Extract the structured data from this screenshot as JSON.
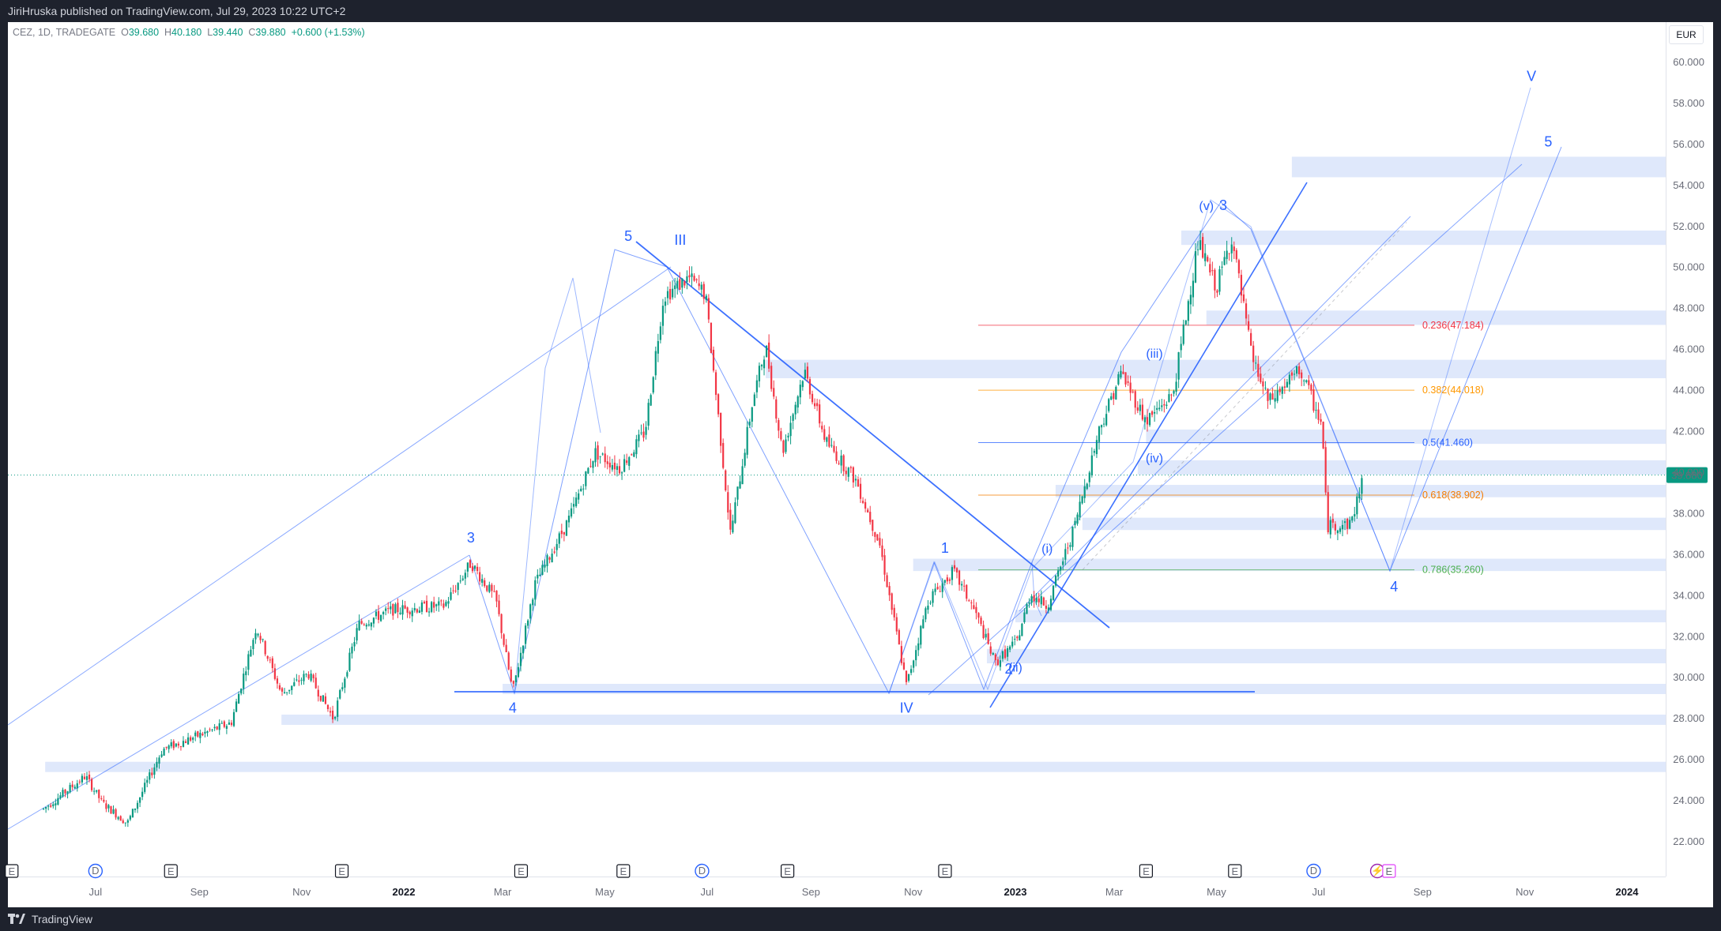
{
  "publisher_line": "JiriHruska published on TradingView.com, Jul 29, 2023 10:22 UTC+2",
  "footer_brand": "TradingView",
  "legend": {
    "symbol": "CEZ, 1D, TRADEGATE",
    "open_label": "O",
    "open": "39.680",
    "high_label": "H",
    "high": "40.180",
    "low_label": "L",
    "low": "39.440",
    "close_label": "C",
    "close": "39.880",
    "change": "+0.600 (+1.53%)"
  },
  "currency": "EUR",
  "last_price_label": "39.880",
  "colors": {
    "up": "#089981",
    "down": "#f23645",
    "wave": "#2962ff",
    "zone": "#dfe8fb",
    "topbar": "#1e222d"
  },
  "chart_data": {
    "type": "candlestick",
    "title": "",
    "xlabel": "",
    "ylabel": "",
    "ylim": [
      20.8,
      61.2
    ],
    "grid": false,
    "y_ticks": [
      "22.000",
      "24.000",
      "26.000",
      "28.000",
      "30.000",
      "32.000",
      "34.000",
      "36.000",
      "38.000",
      "40.000",
      "42.000",
      "44.000",
      "46.000",
      "48.000",
      "50.000",
      "52.000",
      "54.000",
      "56.000",
      "58.000",
      "60.000"
    ],
    "x_ticks": [
      {
        "label": "Jul",
        "bold": false
      },
      {
        "label": "Sep",
        "bold": false
      },
      {
        "label": "Nov",
        "bold": false
      },
      {
        "label": "2022",
        "bold": true
      },
      {
        "label": "Mar",
        "bold": false
      },
      {
        "label": "May",
        "bold": false
      },
      {
        "label": "Jul",
        "bold": false
      },
      {
        "label": "Sep",
        "bold": false
      },
      {
        "label": "Nov",
        "bold": false
      },
      {
        "label": "2023",
        "bold": true
      },
      {
        "label": "Mar",
        "bold": false
      },
      {
        "label": "May",
        "bold": false
      },
      {
        "label": "Jul",
        "bold": false
      },
      {
        "label": "Sep",
        "bold": false
      },
      {
        "label": "Nov",
        "bold": false
      },
      {
        "label": "2024",
        "bold": true
      }
    ],
    "price_path": [
      [
        "2021-05-31",
        23.6
      ],
      [
        "2021-06-25",
        25.2
      ],
      [
        "2021-07-05",
        23.9
      ],
      [
        "2021-07-20",
        22.9
      ],
      [
        "2021-08-10",
        26.5
      ],
      [
        "2021-09-20",
        27.8
      ],
      [
        "2021-10-05",
        32.5
      ],
      [
        "2021-10-20",
        29.2
      ],
      [
        "2021-11-05",
        30.2
      ],
      [
        "2021-11-20",
        28.0
      ],
      [
        "2021-12-05",
        32.6
      ],
      [
        "2021-12-25",
        33.3
      ],
      [
        "2022-01-25",
        33.5
      ],
      [
        "2022-02-10",
        35.6
      ],
      [
        "2022-02-25",
        33.8
      ],
      [
        "2022-03-07",
        29.3
      ],
      [
        "2022-03-20",
        34.5
      ],
      [
        "2022-04-10",
        37.8
      ],
      [
        "2022-04-25",
        41.0
      ],
      [
        "2022-05-10",
        40.2
      ],
      [
        "2022-05-25",
        42.0
      ],
      [
        "2022-06-05",
        48.6
      ],
      [
        "2022-06-20",
        49.5
      ],
      [
        "2022-06-30",
        48.7
      ],
      [
        "2022-07-07",
        43.3
      ],
      [
        "2022-07-15",
        37.0
      ],
      [
        "2022-07-28",
        43.4
      ],
      [
        "2022-08-05",
        46.2
      ],
      [
        "2022-08-15",
        41.0
      ],
      [
        "2022-08-28",
        45.0
      ],
      [
        "2022-09-10",
        41.5
      ],
      [
        "2022-09-28",
        39.6
      ],
      [
        "2022-10-12",
        36.5
      ],
      [
        "2022-10-28",
        29.6
      ],
      [
        "2022-11-10",
        33.8
      ],
      [
        "2022-11-25",
        35.2
      ],
      [
        "2022-12-08",
        33.2
      ],
      [
        "2022-12-20",
        30.7
      ],
      [
        "2023-01-02",
        31.8
      ],
      [
        "2023-01-10",
        34.1
      ],
      [
        "2023-01-20",
        33.5
      ],
      [
        "2023-02-05",
        37.3
      ],
      [
        "2023-02-20",
        42.1
      ],
      [
        "2023-03-05",
        44.9
      ],
      [
        "2023-03-20",
        42.5
      ],
      [
        "2023-04-05",
        43.8
      ],
      [
        "2023-04-20",
        51.2
      ],
      [
        "2023-05-01",
        49.0
      ],
      [
        "2023-05-10",
        51.5
      ],
      [
        "2023-05-22",
        45.7
      ],
      [
        "2023-06-01",
        43.4
      ],
      [
        "2023-06-20",
        45.0
      ],
      [
        "2023-07-03",
        42.3
      ],
      [
        "2023-07-06",
        37.4
      ],
      [
        "2023-07-20",
        37.5
      ],
      [
        "2023-07-28",
        39.88
      ]
    ],
    "support_zones": [
      {
        "from": "2023-06-15",
        "y": [
          54.4,
          55.4
        ]
      },
      {
        "from": "2023-04-10",
        "y": [
          51.1,
          51.8
        ]
      },
      {
        "from": "2023-04-25",
        "y": [
          47.2,
          47.9
        ]
      },
      {
        "from": "2022-08-05",
        "y": [
          44.6,
          45.5
        ]
      },
      {
        "from": "2023-03-20",
        "y": [
          41.4,
          42.1
        ]
      },
      {
        "from": "2023-03-15",
        "y": [
          39.9,
          40.6
        ]
      },
      {
        "from": "2023-01-25",
        "y": [
          38.8,
          39.4
        ]
      },
      {
        "from": "2023-02-10",
        "y": [
          37.2,
          37.8
        ]
      },
      {
        "from": "2022-11-01",
        "y": [
          35.2,
          35.8
        ]
      },
      {
        "from": "2023-01-01",
        "y": [
          32.7,
          33.3
        ]
      },
      {
        "from": "2022-12-15",
        "y": [
          30.7,
          31.4
        ]
      },
      {
        "from": "2022-03-01",
        "y": [
          29.2,
          29.7
        ]
      },
      {
        "from": "2021-10-20",
        "y": [
          27.7,
          28.2
        ]
      },
      {
        "from": "2021-06-01",
        "y": [
          25.4,
          25.9
        ]
      }
    ],
    "fib_levels": [
      {
        "label": "0.236(47.184)",
        "y": 47.184,
        "color": "#f23645"
      },
      {
        "label": "0.382(44.018)",
        "y": 44.018,
        "color": "#ff9800"
      },
      {
        "label": "0.5(41.460)",
        "y": 41.46,
        "color": "#2962ff"
      },
      {
        "label": "0.618(38.902)",
        "y": 38.902,
        "color": "#f57c00"
      },
      {
        "label": "0.786(35.260)",
        "y": 35.26,
        "color": "#4caf50"
      }
    ],
    "wave_labels": [
      {
        "text": "3",
        "x": "2022-02-10",
        "y": 36.6
      },
      {
        "text": "4",
        "x": "2022-03-07",
        "y": 28.3
      },
      {
        "text": "5",
        "x": "2022-05-15",
        "y": 51.3
      },
      {
        "text": "III",
        "x": "2022-06-15",
        "y": 51.1
      },
      {
        "text": "IV",
        "x": "2022-10-28",
        "y": 28.3
      },
      {
        "text": "1",
        "x": "2022-11-20",
        "y": 36.1
      },
      {
        "text": "2",
        "x": "2022-12-28",
        "y": 30.2
      },
      {
        "text": "(ii)",
        "x": "2023-01-01",
        "y": 30.3
      },
      {
        "text": "(i)",
        "x": "2023-01-20",
        "y": 36.1
      },
      {
        "text": "(iii)",
        "x": "2023-03-25",
        "y": 45.6
      },
      {
        "text": "(iv)",
        "x": "2023-03-25",
        "y": 40.5
      },
      {
        "text": "(v)",
        "x": "2023-04-25",
        "y": 52.8
      },
      {
        "text": "3",
        "x": "2023-05-05",
        "y": 52.8
      },
      {
        "text": "4",
        "x": "2023-08-15",
        "y": 34.2
      },
      {
        "text": "V",
        "x": "2023-11-05",
        "y": 59.1
      },
      {
        "text": "5",
        "x": "2023-11-15",
        "y": 55.9
      }
    ],
    "event_markers": [
      {
        "text": "E",
        "x": "2021-05-12"
      },
      {
        "text": "D",
        "x": "2021-07-01"
      },
      {
        "text": "E",
        "x": "2021-08-15"
      },
      {
        "text": "E",
        "x": "2021-11-25"
      },
      {
        "text": "E",
        "x": "2022-03-12"
      },
      {
        "text": "E",
        "x": "2022-05-12"
      },
      {
        "text": "D",
        "x": "2022-06-28"
      },
      {
        "text": "E",
        "x": "2022-08-18"
      },
      {
        "text": "E",
        "x": "2022-11-20"
      },
      {
        "text": "E",
        "x": "2023-03-20"
      },
      {
        "text": "E",
        "x": "2023-05-12"
      },
      {
        "text": "D",
        "x": "2023-06-28"
      },
      {
        "text": "⚡",
        "x": "2023-08-05"
      },
      {
        "text": "E",
        "x": "2023-08-12"
      }
    ]
  }
}
